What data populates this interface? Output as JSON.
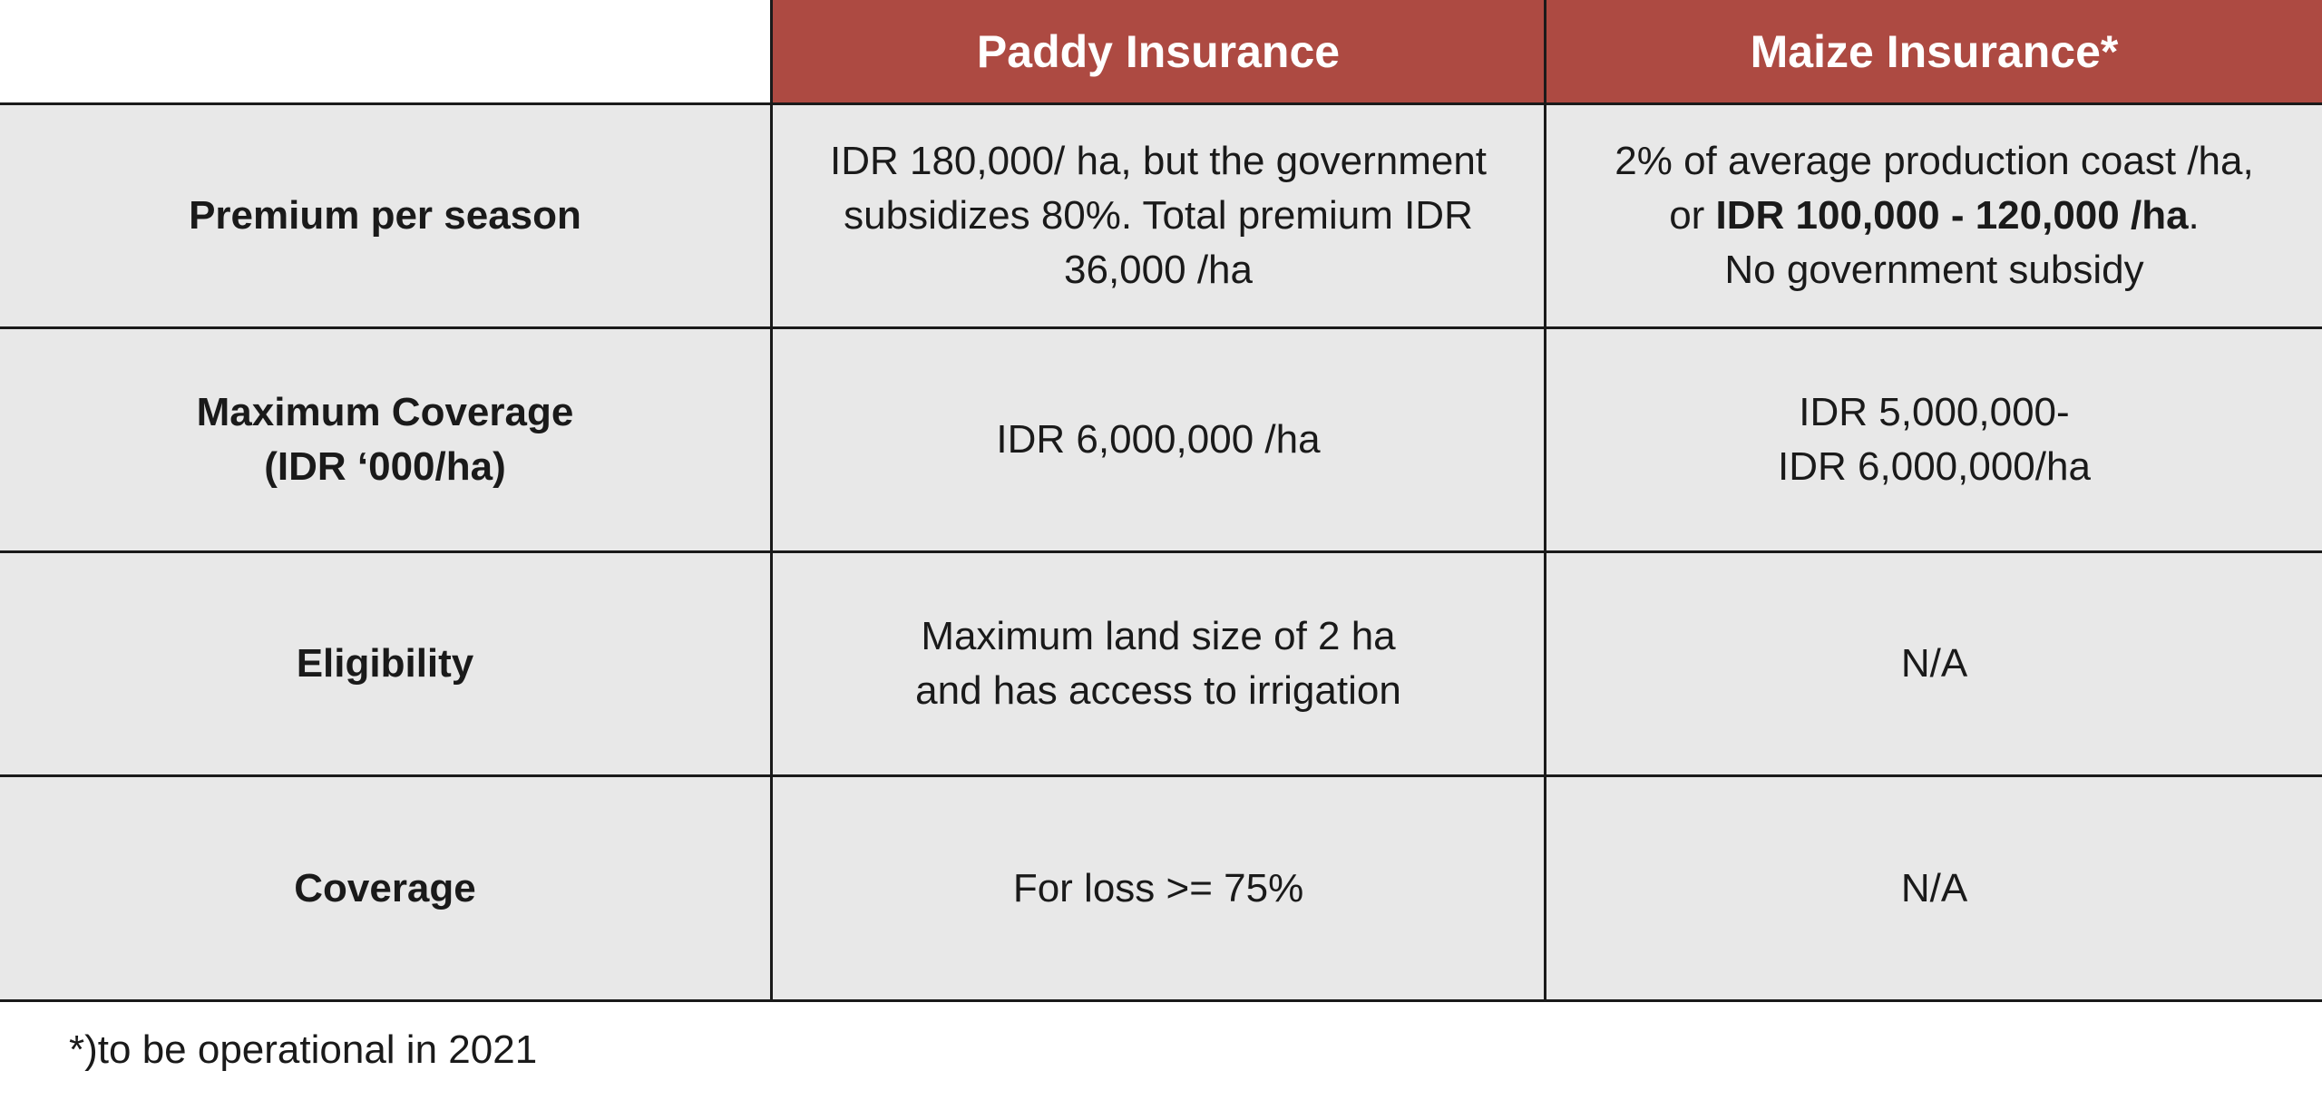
{
  "table": {
    "headers": [
      "",
      "Paddy Insurance",
      "Maize Insurance*"
    ],
    "rows": [
      {
        "label_lines": [
          "Premium per season"
        ],
        "paddy_lines": [
          "IDR 180,000/ ha, but the government",
          "subsidizes 80%.  Total premium IDR",
          "36,000 /ha"
        ],
        "maize": {
          "line1": "2% of average production coast /ha,",
          "line2_prefix": "or ",
          "line2_bold": "IDR 100,000 - 120,000 /ha",
          "line2_suffix": ".",
          "line3": "No government subsidy"
        }
      },
      {
        "label_lines": [
          "Maximum Coverage",
          "(IDR ‘000/ha)"
        ],
        "paddy_lines": [
          "IDR 6,000,000 /ha"
        ],
        "maize_lines": [
          "IDR 5,000,000-",
          "IDR 6,000,000/ha"
        ]
      },
      {
        "label_lines": [
          "Eligibility"
        ],
        "paddy_lines": [
          "Maximum land size of 2 ha",
          "and has access to irrigation"
        ],
        "maize_lines": [
          "N/A"
        ]
      },
      {
        "label_lines": [
          "Coverage"
        ],
        "paddy_lines": [
          "For loss >= 75%"
        ],
        "maize_lines": [
          "N/A"
        ]
      }
    ]
  },
  "footnote": "*)to be operational in 2021",
  "colors": {
    "header_bg": "#ad4a42",
    "body_bg": "#e8e8e8",
    "border": "#1a1a1a"
  }
}
